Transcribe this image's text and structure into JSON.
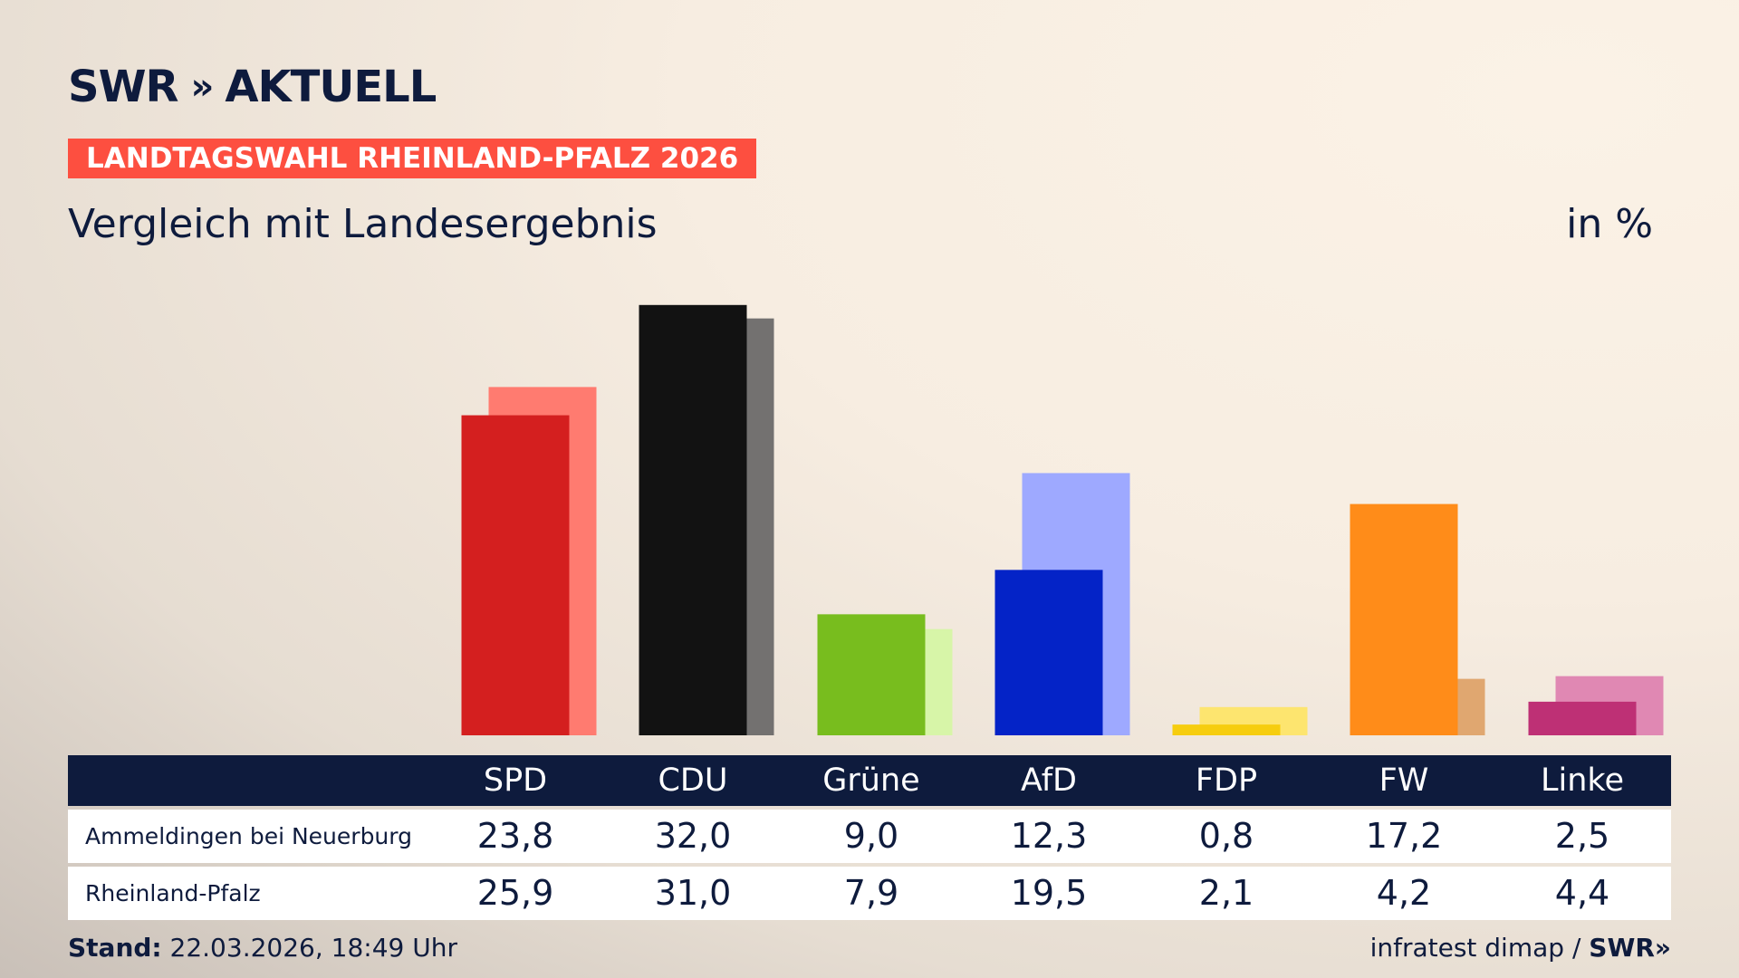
{
  "header": {
    "logo_text": "SWR",
    "logo_chevrons": "»",
    "logo_suffix": "AKTUELL",
    "kicker": "LANDTAGSWAHL RHEINLAND-PFALZ 2026",
    "title": "Vergleich mit Landesergebnis",
    "unit": "in %"
  },
  "rows": [
    {
      "label": "Ammeldingen bei Neuerburg",
      "values": [
        "23,8",
        "32,0",
        "9,0",
        "12,3",
        "0,8",
        "17,2",
        "2,5"
      ]
    },
    {
      "label": "Rheinland-Pfalz",
      "values": [
        "25,9",
        "31,0",
        "7,9",
        "19,5",
        "2,1",
        "4,2",
        "4,4"
      ]
    }
  ],
  "footer": {
    "stand_label": "Stand:",
    "stand_value": "22.03.2026, 18:49 Uhr",
    "source": "infratest dimap /",
    "source_logo": "SWR»"
  },
  "chart_data": {
    "type": "bar",
    "categories": [
      "SPD",
      "CDU",
      "Grüne",
      "AfD",
      "FDP",
      "FW",
      "Linke"
    ],
    "series": [
      {
        "name": "Ammeldingen bei Neuerburg",
        "values": [
          23.8,
          32.0,
          9.0,
          12.3,
          0.8,
          17.2,
          2.5
        ],
        "colors": [
          "#d41f1f",
          "#121212",
          "#78bd1e",
          "#0423c7",
          "#f6cd0f",
          "#ff8c19",
          "#be3075"
        ]
      },
      {
        "name": "Rheinland-Pfalz",
        "values": [
          25.9,
          31.0,
          7.9,
          19.5,
          2.1,
          4.2,
          4.4
        ],
        "colors": [
          "#ff7b70",
          "#737170",
          "#d7f5a8",
          "#9ea9ff",
          "#fde56f",
          "#e0a770",
          "#e088b3"
        ]
      }
    ],
    "ylabel": "in %",
    "grid": false
  }
}
